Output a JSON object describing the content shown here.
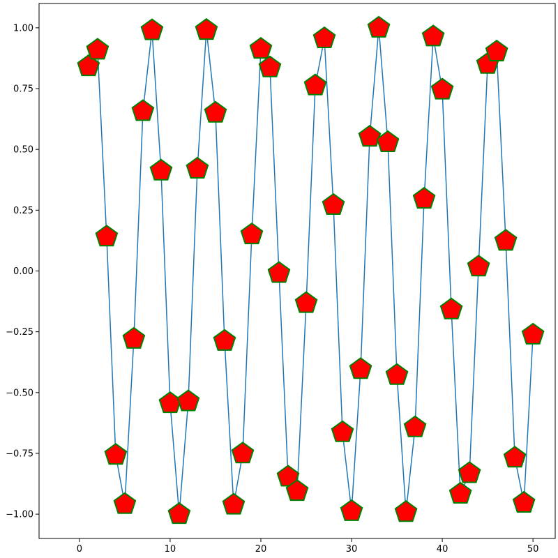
{
  "chart_data": {
    "type": "line",
    "title": "",
    "xlabel": "",
    "ylabel": "",
    "xlim": [
      -4.45,
      52.45
    ],
    "ylim": [
      -1.1,
      1.1
    ],
    "xticks": [
      0,
      10,
      20,
      30,
      40,
      50
    ],
    "xtick_labels": [
      "0",
      "10",
      "20",
      "30",
      "40",
      "50"
    ],
    "yticks": [
      -1.0,
      -0.75,
      -0.5,
      -0.25,
      0.0,
      0.25,
      0.5,
      0.75,
      1.0
    ],
    "ytick_labels": [
      "−1.00",
      "−0.75",
      "−0.50",
      "−0.25",
      "0.00",
      "0.25",
      "0.50",
      "0.75",
      "1.00"
    ],
    "grid": false,
    "legend": "none",
    "series": [
      {
        "line_color": "#1f77b4",
        "marker": "pentagon",
        "marker_face_color": "#ff0000",
        "marker_edge_color": "#008000",
        "x": [
          1,
          2,
          3,
          4,
          5,
          6,
          7,
          8,
          9,
          10,
          11,
          12,
          13,
          14,
          15,
          16,
          17,
          18,
          19,
          20,
          21,
          22,
          23,
          24,
          25,
          26,
          27,
          28,
          29,
          30,
          31,
          32,
          33,
          34,
          35,
          36,
          37,
          38,
          39,
          40,
          41,
          42,
          43,
          44,
          45,
          46,
          47,
          48,
          49,
          50
        ],
        "y": [
          0.8415,
          0.9093,
          0.1411,
          -0.7568,
          -0.9589,
          -0.2794,
          0.657,
          0.9894,
          0.4121,
          -0.544,
          -1.0,
          -0.5366,
          0.4202,
          0.9906,
          0.6503,
          -0.2879,
          -0.9614,
          -0.751,
          0.1499,
          0.9129,
          0.8367,
          -0.0089,
          -0.8462,
          -0.9056,
          -0.1324,
          0.7626,
          0.9564,
          0.2709,
          -0.6636,
          -0.988,
          -0.404,
          0.5514,
          0.9999,
          0.5291,
          -0.4282,
          -0.9918,
          -0.6435,
          0.2964,
          0.9638,
          0.7451,
          -0.1586,
          -0.9165,
          -0.8318,
          0.0177,
          0.8509,
          0.9018,
          0.1236,
          -0.7683,
          -0.9538,
          -0.2624
        ]
      }
    ]
  }
}
